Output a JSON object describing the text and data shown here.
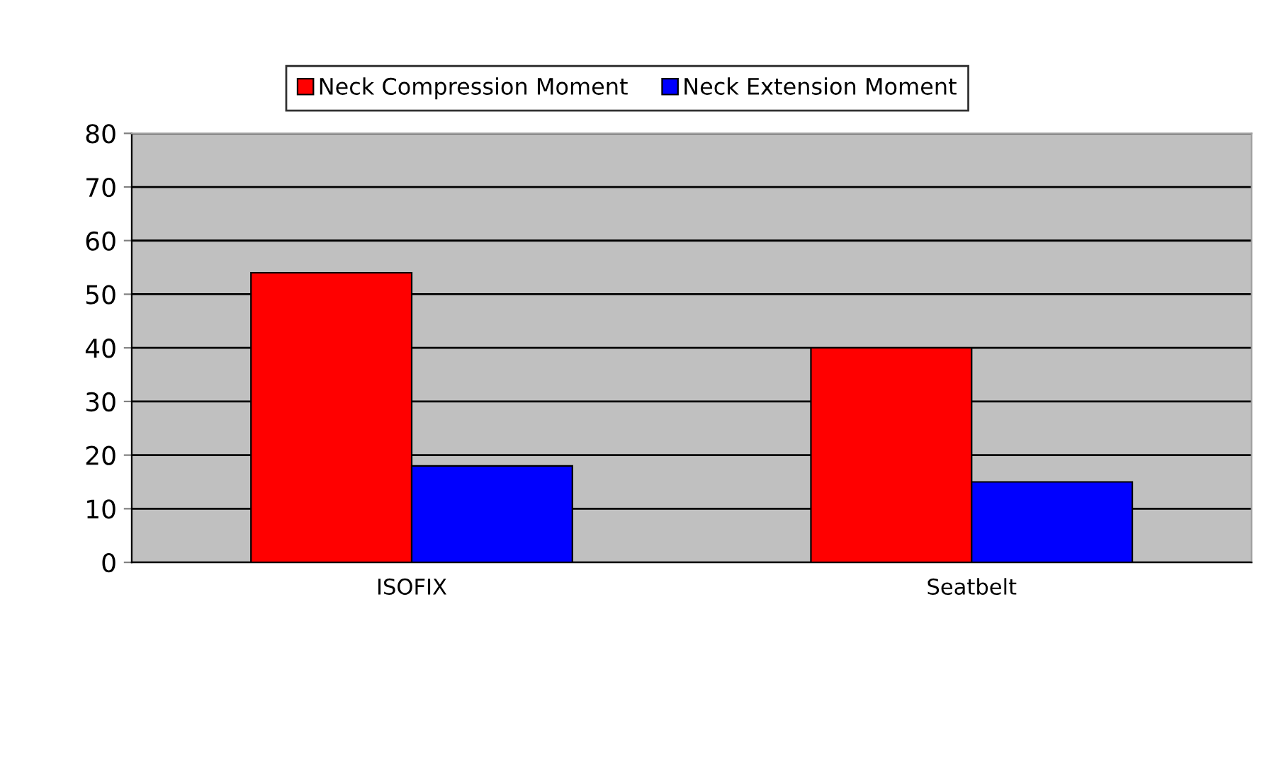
{
  "chart_data": {
    "type": "bar",
    "categories": [
      "ISOFIX",
      "Seatbelt"
    ],
    "series": [
      {
        "name": "Neck Compression Moment",
        "color": "#ff0000",
        "values": [
          54,
          40
        ]
      },
      {
        "name": "Neck Extension Moment",
        "color": "#0000ff",
        "values": [
          18,
          15
        ]
      }
    ],
    "ylim": [
      0,
      80
    ],
    "yticks": [
      0,
      10,
      20,
      30,
      40,
      50,
      60,
      70,
      80
    ],
    "grid": "y",
    "legend": "top"
  }
}
